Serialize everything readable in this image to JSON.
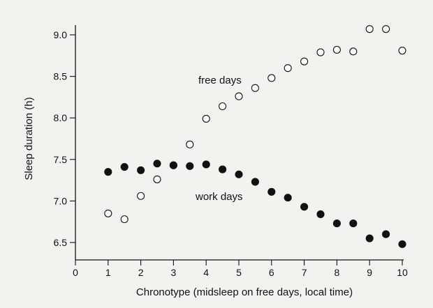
{
  "chart_data": {
    "type": "scatter",
    "xlabel": "Chronotype (midsleep on free days, local time)",
    "ylabel": "Sleep duration (h)",
    "xlim": [
      0,
      10
    ],
    "ylim": [
      6.5,
      9.0
    ],
    "xticks": [
      0,
      1,
      2,
      3,
      4,
      5,
      6,
      7,
      8,
      9,
      10
    ],
    "yticks": [
      6.5,
      7.0,
      7.5,
      8.0,
      8.5,
      9.0
    ],
    "ytick_labels": [
      "6.5",
      "7.0",
      "7.5",
      "8.0",
      "8.5",
      "9.0"
    ],
    "grid": false,
    "series": [
      {
        "name": "free days",
        "marker": "open",
        "x": [
          1,
          1.5,
          2,
          2.5,
          3,
          3.5,
          4,
          4.5,
          5,
          5.5,
          6,
          6.5,
          7,
          7.5,
          8,
          8.5,
          9,
          9.5,
          10
        ],
        "y": [
          6.85,
          6.78,
          7.06,
          7.26,
          7.43,
          7.68,
          7.99,
          8.14,
          8.26,
          8.36,
          8.48,
          8.6,
          8.68,
          8.79,
          8.82,
          8.8,
          9.07,
          9.07,
          8.81
        ]
      },
      {
        "name": "work days",
        "marker": "filled",
        "x": [
          1,
          1.5,
          2,
          2.5,
          3,
          3.5,
          4,
          4.5,
          5,
          5.5,
          6,
          6.5,
          7,
          7.5,
          8,
          8.5,
          9,
          9.5,
          10
        ],
        "y": [
          7.35,
          7.41,
          7.37,
          7.45,
          7.43,
          7.42,
          7.44,
          7.38,
          7.32,
          7.23,
          7.11,
          7.04,
          6.93,
          6.84,
          6.73,
          6.73,
          6.55,
          6.6,
          6.48
        ]
      }
    ],
    "colors": {
      "background": "#f4f2ef",
      "ink": "#111111",
      "open_fill": "#ffffff"
    }
  }
}
